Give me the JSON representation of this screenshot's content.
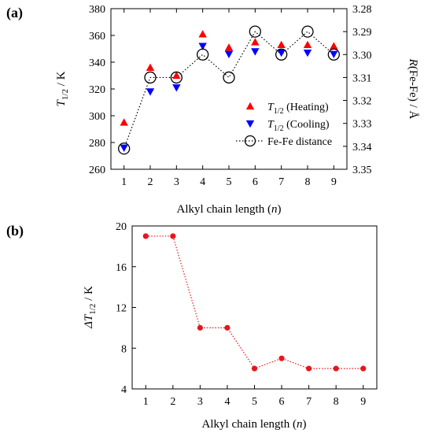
{
  "chart_data": [
    {
      "panel_label": "(a)",
      "type": "scatter",
      "xlabel": "Alkyl chain length",
      "xlabel_var": "n",
      "ylabel_left": {
        "main": "T",
        "sub": "1/2",
        "rest": " / K"
      },
      "ylabel_right": {
        "main": "R",
        "rest": "(Fe-Fe) / Å"
      },
      "x_ticks": [
        1,
        2,
        3,
        4,
        5,
        6,
        7,
        8,
        9
      ],
      "xlim": [
        0.5,
        9.5
      ],
      "y_left_ticks": [
        260,
        280,
        300,
        320,
        340,
        360,
        380
      ],
      "y_left_lim": [
        260,
        380
      ],
      "y_right_ticks": [
        "3.28",
        "3.29",
        "3.30",
        "3.31",
        "3.32",
        "3.33",
        "3.34",
        "3.35"
      ],
      "y_right_lim": [
        3.35,
        3.28
      ],
      "y_right_inverted": true,
      "legend_position": "bottom-right",
      "series": [
        {
          "name": {
            "main": "T",
            "sub": "1/2",
            "rest": " (Heating)"
          },
          "marker": "triangle-up",
          "color": "#ff0000",
          "axis": "left",
          "x": [
            1,
            2,
            3,
            4,
            5,
            6,
            7,
            8,
            9
          ],
          "y": [
            295,
            336,
            330,
            361,
            351,
            355,
            353,
            353,
            352
          ]
        },
        {
          "name": {
            "main": "T",
            "sub": "1/2",
            "rest": " (Cooling)"
          },
          "marker": "triangle-down",
          "color": "#0000ff",
          "axis": "left",
          "x": [
            1,
            2,
            3,
            4,
            5,
            6,
            7,
            8,
            9
          ],
          "y": [
            276,
            318,
            321,
            352,
            346,
            348,
            347,
            347,
            346
          ]
        },
        {
          "name": {
            "main": "Fe-Fe distance",
            "sub": "",
            "rest": ""
          },
          "marker": "circle-open",
          "color": "#000000",
          "axis": "right",
          "line": "dotted",
          "x": [
            1,
            2,
            3,
            4,
            5,
            6,
            7,
            8,
            9
          ],
          "y": [
            3.341,
            3.31,
            3.31,
            3.3,
            3.31,
            3.29,
            3.3,
            3.29,
            3.3
          ]
        }
      ]
    },
    {
      "panel_label": "(b)",
      "type": "line",
      "xlabel": "Alkyl chain length",
      "xlabel_var": "n",
      "ylabel": {
        "main": "ΔT",
        "sub": "1/2",
        "rest": " / K"
      },
      "x_ticks": [
        1,
        2,
        3,
        4,
        5,
        6,
        7,
        8,
        9
      ],
      "xlim": [
        0.5,
        9.5
      ],
      "y_ticks": [
        4,
        8,
        12,
        16,
        20
      ],
      "ylim": [
        4,
        20
      ],
      "color": "#e8161c",
      "series": [
        {
          "x": [
            1,
            2,
            3,
            4,
            5,
            6,
            7,
            8,
            9
          ],
          "values": [
            19,
            19,
            10,
            10,
            6,
            7,
            6,
            6,
            6
          ]
        }
      ]
    }
  ]
}
